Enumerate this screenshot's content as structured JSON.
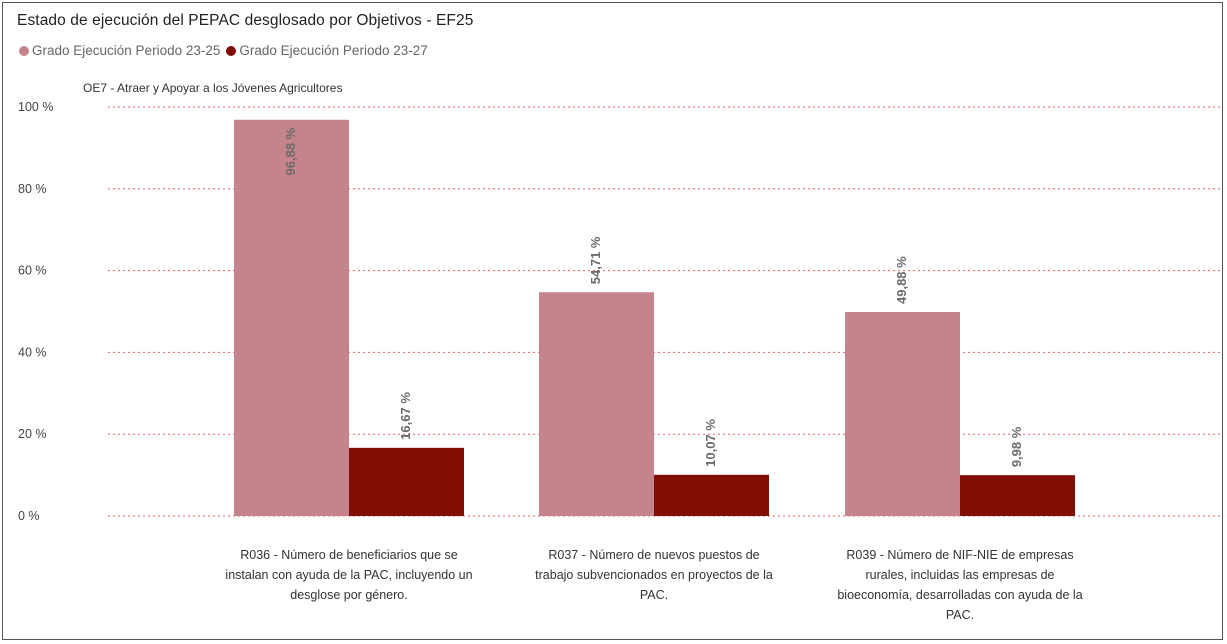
{
  "header": {
    "title": "Estado de ejecución del PEPAC desglosado por Objetivos - EF25"
  },
  "legend": [
    {
      "label": "Grado Ejecución Periodo 23-25",
      "color": "#c5838c"
    },
    {
      "label": "Grado Ejecución Periodo 23-27",
      "color": "#800e04"
    }
  ],
  "chart_data": {
    "type": "bar",
    "subtitle": "OE7 - Atraer y Apoyar a los Jóvenes Agricultores",
    "categories": [
      "R036 - Número de beneficiarios que se instalan con ayuda de la PAC, incluyendo un desglose por género.",
      "R037 - Número de nuevos puestos de trabajo subvencionados en proyectos de la PAC.",
      "R039 - Número de NIF-NIE de empresas rurales, incluidas las empresas de bioeconomía, desarrolladas con ayuda de la PAC."
    ],
    "category_lines": [
      [
        "R036 - Número de beneficiarios que se",
        "instalan con ayuda de la PAC, incluyendo un",
        "desglose por género."
      ],
      [
        "R037 - Número de nuevos puestos de",
        "trabajo subvencionados en proyectos de la",
        "PAC."
      ],
      [
        "R039 - Número de NIF-NIE de empresas",
        "rurales, incluidas las empresas de",
        "bioeconomía, desarrolladas con ayuda de la",
        "PAC."
      ]
    ],
    "series": [
      {
        "name": "Grado Ejecución Periodo 23-25",
        "color": "#c5838c",
        "values": [
          96.88,
          54.71,
          49.88
        ],
        "labels": [
          "96,88 %",
          "54,71 %",
          "49,88 %"
        ]
      },
      {
        "name": "Grado Ejecución Periodo 23-27",
        "color": "#800e04",
        "values": [
          16.67,
          10.07,
          9.98
        ],
        "labels": [
          "16,67 %",
          "10,07 %",
          "9,98 %"
        ]
      }
    ],
    "ylim": [
      0,
      100
    ],
    "yticks": [
      0,
      20,
      40,
      60,
      80,
      100
    ],
    "ytick_labels": [
      "0 %",
      "20 %",
      "40 %",
      "60 %",
      "80 %",
      "100 %"
    ],
    "grid": true,
    "grid_color": "#e06060",
    "legend_position": "top-left"
  }
}
